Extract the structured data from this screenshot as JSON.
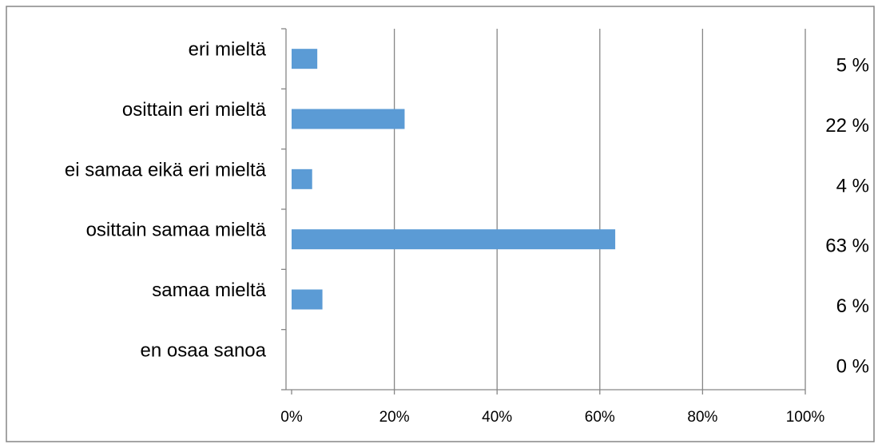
{
  "chart_data": {
    "type": "bar",
    "orientation": "horizontal",
    "categories": [
      "eri mieltä",
      "osittain eri mieltä",
      "ei samaa eikä eri mieltä",
      "osittain samaa mieltä",
      "samaa mieltä",
      "en osaa sanoa"
    ],
    "values": [
      5,
      22,
      4,
      63,
      6,
      0
    ],
    "data_labels": [
      "5 %",
      "22 %",
      "4 %",
      "63 %",
      "6 %",
      "0 %"
    ],
    "x_ticks": [
      "0%",
      "20%",
      "40%",
      "60%",
      "80%",
      "100%"
    ],
    "xlim": [
      0,
      100
    ],
    "grid": true,
    "legend": false,
    "bar_color": "#5b9bd5",
    "gridline_color": "#868686",
    "border_color": "#868686"
  }
}
